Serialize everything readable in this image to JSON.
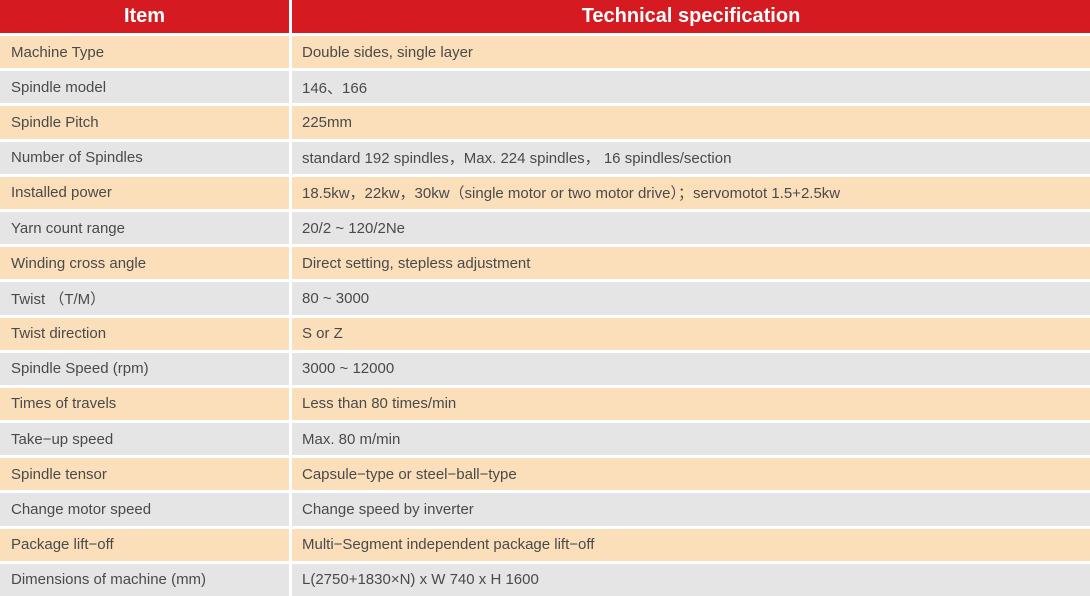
{
  "header": {
    "item": "Item",
    "spec": "Technical specification"
  },
  "rows": [
    {
      "item": "Machine Type",
      "spec": "Double sides, single layer"
    },
    {
      "item": "Spindle model",
      "spec": "146、166"
    },
    {
      "item": "Spindle Pitch",
      "spec": "225mm"
    },
    {
      "item": "Number of Spindles",
      "spec": "standard 192 spindles，Max. 224 spindles，  16 spindles/section"
    },
    {
      "item": "Installed power",
      "spec": "18.5kw，22kw，30kw（single motor or two motor drive）；servomotot 1.5+2.5kw"
    },
    {
      "item": "Yarn count range",
      "spec": "20/2 ~ 120/2Ne"
    },
    {
      "item": "Winding cross angle",
      "spec": "Direct setting, stepless adjustment"
    },
    {
      "item": "Twist （T/M）",
      "spec": "80 ~ 3000"
    },
    {
      "item": "Twist direction",
      "spec": "S or Z"
    },
    {
      "item": "Spindle Speed (rpm)",
      "spec": "3000 ~ 12000"
    },
    {
      "item": "Times of travels",
      "spec": "Less than 80 times/min"
    },
    {
      "item": "Take−up speed",
      "spec": "Max. 80 m/min"
    },
    {
      "item": "Spindle tensor",
      "spec": "Capsule−type or steel−ball−type"
    },
    {
      "item": "Change motor speed",
      "spec": "Change speed by inverter"
    },
    {
      "item": "Package lift−off",
      "spec": "Multi−Segment independent package lift−off"
    },
    {
      "item": "Dimensions of machine (mm)",
      "spec": "L(2750+1830×N) x W 740 x H 1600"
    }
  ],
  "colors": {
    "header_bg": "#d51a22",
    "header_text": "#ffffff",
    "row_peach": "#fbdfba",
    "row_gray": "#e6e5e5",
    "body_text": "#4a4a4a",
    "divider": "#ffffff"
  }
}
